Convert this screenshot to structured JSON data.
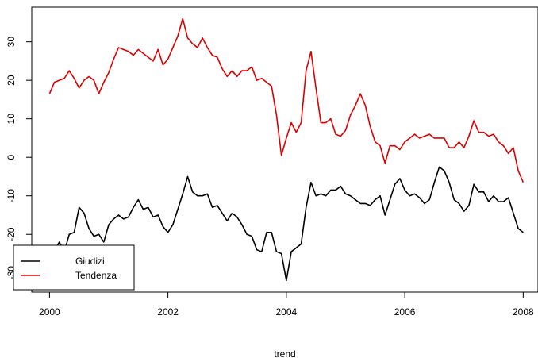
{
  "chart_data": {
    "type": "line",
    "title": "",
    "xlabel": "trend",
    "ylabel": "",
    "xlim": [
      1999.7,
      2008.25
    ],
    "ylim": [
      -35,
      39
    ],
    "x_ticks": [
      2000,
      2002,
      2004,
      2006,
      2008
    ],
    "x_tick_labels": [
      "2000",
      "2002",
      "2004",
      "2006",
      "2008"
    ],
    "y_ticks": [
      -30,
      -20,
      -10,
      0,
      10,
      20,
      30
    ],
    "y_tick_labels": [
      "-30",
      "-20",
      "-10",
      "0",
      "10",
      "20",
      "30"
    ],
    "grid": false,
    "legend_position": "bottom-left",
    "x_start": 2000,
    "x_step": 0.083333,
    "series": [
      {
        "name": "Giudizi",
        "color": "#000000",
        "values": [
          -26.5,
          -24,
          -22,
          -24.5,
          -20,
          -19.5,
          -13,
          -14.5,
          -18.5,
          -20.5,
          -20,
          -22,
          -17.5,
          -16,
          -15,
          -16,
          -15.5,
          -13,
          -11,
          -13.5,
          -13,
          -15.5,
          -15,
          -18,
          -19.5,
          -17.5,
          -13.5,
          -9.5,
          -5,
          -9,
          -10,
          -10,
          -9.5,
          -13,
          -12.5,
          -14.5,
          -16.5,
          -14.5,
          -15.5,
          -17.5,
          -20,
          -20.5,
          -24,
          -24.5,
          -19.5,
          -19.5,
          -24.5,
          -25,
          -32,
          -24.5,
          -23.5,
          -22.5,
          -13,
          -6.5,
          -10,
          -9.5,
          -10,
          -8.5,
          -8.5,
          -7.5,
          -9.5,
          -10,
          -11,
          -12,
          -12,
          -12.5,
          -11,
          -10,
          -15,
          -11,
          -7,
          -5.5,
          -8.5,
          -10,
          -9.5,
          -10.5,
          -12,
          -11,
          -6.5,
          -2.5,
          -3.5,
          -6.5,
          -11,
          -12,
          -14,
          -12.5,
          -7,
          -9,
          -9,
          -11.5,
          -10,
          -11.5,
          -11.5,
          -10.5,
          -14.5,
          -18.5,
          -19.5
        ]
      },
      {
        "name": "Tendenza",
        "color": "#dd0000",
        "values": [
          16.5,
          19.5,
          20,
          20.5,
          22.5,
          20.5,
          18,
          20,
          21,
          20,
          16.5,
          19.5,
          22,
          25.5,
          28.5,
          28,
          27.5,
          26.5,
          28,
          27,
          26,
          25,
          28,
          24,
          25.5,
          28.5,
          31.5,
          36,
          31,
          29.5,
          28.5,
          31,
          28.5,
          26.5,
          26,
          23,
          21,
          22.5,
          21,
          22.5,
          22.5,
          23.5,
          20,
          20.5,
          19.5,
          18.5,
          11,
          0.5,
          5,
          9,
          6.5,
          9,
          22.5,
          27.5,
          18,
          9,
          9,
          10,
          6,
          5.5,
          7,
          11,
          13.5,
          16.5,
          13.5,
          8,
          4,
          3,
          -1.5,
          3,
          3,
          2,
          4,
          5,
          6,
          5,
          5.5,
          6,
          5,
          5,
          5,
          2.5,
          2.5,
          4,
          2.5,
          5.5,
          9.5,
          6.5,
          6.5,
          5.5,
          6,
          4,
          3,
          1,
          2.5,
          -3.5,
          -6.5
        ]
      }
    ]
  }
}
